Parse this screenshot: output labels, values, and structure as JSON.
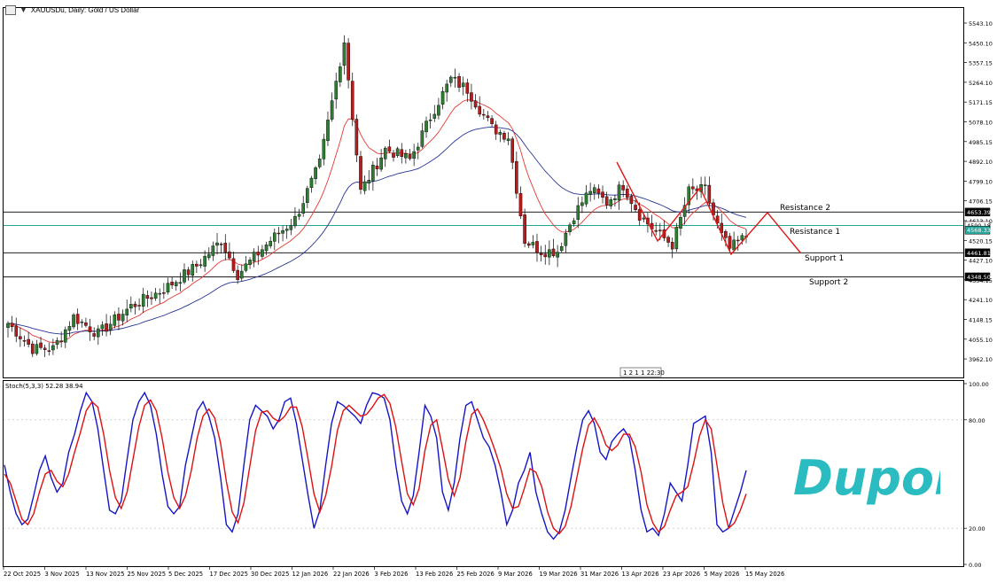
{
  "window": {
    "symbol_title": "XAUUSDu, Daily:  Gold / US Dollar"
  },
  "brand": {
    "name": "Dupoin",
    "color": "#2bbcc1"
  },
  "colors": {
    "bull": "#2e7d32",
    "bear": "#b71c1c",
    "ma_fast": "#e53935",
    "ma_slow": "#283593",
    "stoch_main": "#1515c8",
    "stoch_signal": "#e01010",
    "pattern": "#e01818",
    "resistance_line": "#26a69a"
  },
  "price_axis": {
    "ticks": [
      "5543.10",
      "5450.10",
      "5357.15",
      "5264.10",
      "5171.15",
      "5078.10",
      "4985.15",
      "4892.10",
      "4799.10",
      "4706.15",
      "4613.10",
      "4520.15",
      "4427.10",
      "4334.15",
      "4241.10",
      "4148.15",
      "4055.10",
      "3962.10"
    ],
    "labels": [
      {
        "text": "4653.39",
        "price": 4653.39,
        "style": "dark"
      },
      {
        "text": "4590.18",
        "price": 4590.18,
        "style": "light"
      },
      {
        "text": "4568.33",
        "price": 4568.33,
        "style": "teal"
      },
      {
        "text": "4461.81",
        "price": 4461.81,
        "style": "dark"
      },
      {
        "text": "4348.50",
        "price": 4348.5,
        "style": "dark"
      }
    ]
  },
  "levels": [
    {
      "name": "Resistance 2",
      "price": 4653.39,
      "label": "Resistance 2",
      "color": "#000000"
    },
    {
      "name": "Resistance 1",
      "price": 4590.18,
      "label": "Resistance 1",
      "color": "#26a69a"
    },
    {
      "name": "Support 1",
      "price": 4461.81,
      "label": "Support 1",
      "color": "#000000"
    },
    {
      "name": "Support 2",
      "price": 4348.5,
      "label": "Support 2",
      "color": "#000000"
    }
  ],
  "date_axis": [
    "22 Oct 2025",
    "3 Nov 2025",
    "13 Nov 2025",
    "25 Nov 2025",
    "5 Dec 2025",
    "17 Dec 2025",
    "30 Dec 2025",
    "12 Jan 2026",
    "22 Jan 2026",
    "3 Feb 2026",
    "13 Feb 2026",
    "25 Feb 2026",
    "9 Mar 2026",
    "19 Mar 2026",
    "31 Mar 2026",
    "13 Apr 2026",
    "23 Apr 2026",
    "5 May 2026",
    "15 May 2026"
  ],
  "crosshair_label": "1 2 1 1 22:30",
  "stochastic": {
    "title": "Stoch(5,3,3) 52.28 38.94",
    "ticks": [
      "100.00",
      "80.00",
      "20.00",
      "0.00"
    ],
    "main": [
      55,
      40,
      28,
      22,
      25,
      38,
      52,
      60,
      48,
      40,
      45,
      62,
      72,
      85,
      95,
      90,
      75,
      52,
      30,
      28,
      35,
      58,
      80,
      90,
      95,
      88,
      72,
      50,
      32,
      28,
      32,
      55,
      70,
      85,
      90,
      82,
      70,
      48,
      22,
      18,
      28,
      55,
      80,
      88,
      85,
      82,
      75,
      80,
      90,
      92,
      78,
      58,
      38,
      20,
      30,
      55,
      78,
      90,
      88,
      85,
      82,
      78,
      88,
      95,
      94,
      92,
      80,
      55,
      35,
      28,
      38,
      62,
      88,
      82,
      70,
      40,
      30,
      45,
      70,
      88,
      90,
      80,
      70,
      65,
      55,
      40,
      22,
      30,
      45,
      52,
      62,
      40,
      28,
      18,
      14,
      18,
      30,
      48,
      65,
      80,
      85,
      78,
      62,
      58,
      68,
      72,
      75,
      70,
      52,
      30,
      18,
      20,
      16,
      28,
      45,
      40,
      35,
      55,
      78,
      80,
      82,
      62,
      22,
      18,
      20,
      30,
      40,
      52
    ],
    "signal": [
      50,
      45,
      35,
      25,
      22,
      28,
      40,
      50,
      52,
      46,
      43,
      50,
      62,
      73,
      85,
      90,
      87,
      72,
      52,
      37,
      31,
      40,
      58,
      76,
      88,
      91,
      85,
      70,
      51,
      37,
      31,
      38,
      52,
      70,
      82,
      86,
      81,
      67,
      46,
      29,
      23,
      34,
      54,
      74,
      84,
      85,
      81,
      79,
      82,
      87,
      87,
      76,
      58,
      39,
      29,
      38,
      54,
      74,
      85,
      88,
      85,
      82,
      83,
      87,
      92,
      94,
      89,
      76,
      57,
      39,
      33,
      42,
      63,
      77,
      80,
      64,
      47,
      38,
      48,
      68,
      83,
      86,
      80,
      72,
      63,
      53,
      39,
      31,
      32,
      42,
      53,
      51,
      43,
      29,
      20,
      17,
      21,
      32,
      48,
      64,
      77,
      81,
      75,
      66,
      63,
      66,
      72,
      72,
      65,
      51,
      33,
      23,
      18,
      21,
      30,
      38,
      40,
      43,
      56,
      71,
      80,
      75,
      55,
      34,
      20,
      23,
      30,
      39
    ]
  }
}
